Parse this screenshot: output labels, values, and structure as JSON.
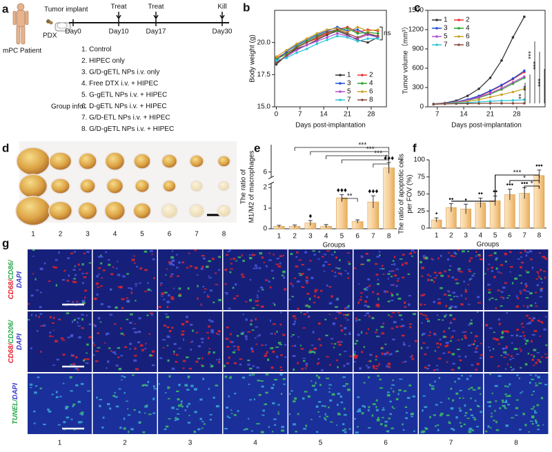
{
  "panel_labels": [
    "a",
    "b",
    "c",
    "d",
    "e",
    "f",
    "g"
  ],
  "timeline": {
    "patient": "mPC Patient",
    "model": "PDX",
    "implant": "Tumor implant",
    "days": [
      "Day0",
      "Day10",
      "Day17",
      "Day30"
    ],
    "events": [
      "Treat",
      "Treat",
      "Kill"
    ],
    "group_info_label": "Group info：",
    "groups": [
      "1. Control",
      "2. HIPEC only",
      "3. G/D-gETL NPs i.v. only",
      "4. Free DTX i.v. + HIPEC",
      "5. G-gETL NPs i.v. + HIPEC",
      "6. D-gETL NPs i.v. + HIPEC",
      "7. G/D-ETL NPs i.v. + HIPEC",
      "8. G/D-gETL NPs i.v. + HIPEC"
    ]
  },
  "chart_data": [
    {
      "type": "line",
      "ylabel": "Body weight (g)",
      "xlabel": "Days post-implantation",
      "x": [
        0,
        3,
        6,
        9,
        12,
        15,
        18,
        21,
        24,
        27,
        30
      ],
      "xlim": [
        -0.5,
        32.5
      ],
      "xticks": [
        0,
        7,
        14,
        21,
        28
      ],
      "ylim": [
        15,
        22.5
      ],
      "yticks": [
        {
          "value": 15,
          "label": "15.0"
        },
        {
          "value": 17.5,
          "label": "17.5"
        },
        {
          "value": 20,
          "label": "20.0"
        }
      ],
      "legend": "lower right",
      "annotations": [
        "ns"
      ],
      "series": [
        {
          "name": "1",
          "color": "#333333",
          "values": [
            18.3,
            19.0,
            19.5,
            19.8,
            20.2,
            20.6,
            20.9,
            20.6,
            20.2,
            20.0,
            20.4
          ]
        },
        {
          "name": "2",
          "color": "#e8312f",
          "values": [
            18.8,
            19.2,
            19.6,
            20.0,
            20.3,
            20.7,
            21.0,
            21.2,
            20.8,
            21.0,
            20.9
          ]
        },
        {
          "name": "3",
          "color": "#1f4fd8",
          "values": [
            18.6,
            19.3,
            19.8,
            20.2,
            20.6,
            20.9,
            21.2,
            20.9,
            21.0,
            20.6,
            20.5
          ]
        },
        {
          "name": "4",
          "color": "#2ca02c",
          "values": [
            18.7,
            19.1,
            19.7,
            20.1,
            20.5,
            20.8,
            20.9,
            21.1,
            20.7,
            20.8,
            20.7
          ]
        },
        {
          "name": "5",
          "color": "#b04fd0",
          "values": [
            18.5,
            18.9,
            19.4,
            19.8,
            20.1,
            20.4,
            20.7,
            20.5,
            20.3,
            20.6,
            20.4
          ]
        },
        {
          "name": "6",
          "color": "#c9a227",
          "values": [
            18.9,
            19.4,
            19.9,
            20.3,
            20.7,
            21.0,
            21.1,
            20.8,
            21.2,
            20.9,
            21.0
          ]
        },
        {
          "name": "7",
          "color": "#2cc5d8",
          "values": [
            18.6,
            18.8,
            19.2,
            19.5,
            19.9,
            20.2,
            20.5,
            20.4,
            20.1,
            20.3,
            20.3
          ]
        },
        {
          "name": "8",
          "color": "#8b4a3a",
          "values": [
            18.4,
            19.0,
            19.6,
            20.0,
            20.4,
            20.8,
            21.0,
            20.7,
            20.4,
            20.7,
            20.5
          ]
        }
      ]
    },
    {
      "type": "line",
      "ylabel": "Tumor volume（mm³）",
      "xlabel": "Days post-implantation",
      "x": [
        6,
        9,
        12,
        15,
        18,
        21,
        24,
        27,
        30
      ],
      "xlim": [
        4.5,
        35.5
      ],
      "xticks": [
        7,
        14,
        21,
        28
      ],
      "ylim": [
        0,
        1500
      ],
      "yticks": [
        0,
        300,
        600,
        900,
        1200,
        1500
      ],
      "legend": "upper left",
      "annotations": [
        "***",
        "***",
        "***",
        "**",
        "**"
      ],
      "series": [
        {
          "name": "1",
          "color": "#333333",
          "values": [
            45,
            60,
            95,
            170,
            280,
            450,
            720,
            1080,
            1400
          ]
        },
        {
          "name": "2",
          "color": "#e8312f",
          "values": [
            40,
            55,
            75,
            110,
            160,
            240,
            330,
            430,
            540
          ]
        },
        {
          "name": "3",
          "color": "#1f4fd8",
          "values": [
            42,
            55,
            78,
            115,
            170,
            250,
            340,
            440,
            560
          ]
        },
        {
          "name": "4",
          "color": "#2ca02c",
          "values": [
            40,
            52,
            70,
            100,
            140,
            200,
            270,
            360,
            450
          ]
        },
        {
          "name": "5",
          "color": "#b04fd0",
          "values": [
            41,
            53,
            72,
            105,
            150,
            210,
            290,
            380,
            470
          ]
        },
        {
          "name": "6",
          "color": "#c9a227",
          "values": [
            40,
            50,
            65,
            85,
            110,
            150,
            190,
            230,
            280
          ]
        },
        {
          "name": "7",
          "color": "#2cc5d8",
          "values": [
            40,
            48,
            58,
            65,
            75,
            85,
            95,
            100,
            110
          ]
        },
        {
          "name": "8",
          "color": "#8b4a3a",
          "values": [
            40,
            45,
            48,
            50,
            52,
            55,
            55,
            55,
            55
          ]
        }
      ]
    },
    {
      "type": "bar",
      "ylabel": [
        "The ratio of",
        "M1/M2 of macrophages"
      ],
      "xlabel": "Groups",
      "categories": [
        "1",
        "2",
        "3",
        "4",
        "5",
        "6",
        "7",
        "8"
      ],
      "values": [
        0.12,
        0.12,
        0.28,
        0.12,
        1.5,
        0.35,
        1.3,
        6.3
      ],
      "errors": [
        0.05,
        0.06,
        0.12,
        0.08,
        0.15,
        0.08,
        0.3,
        0.4
      ],
      "color": "#f7cf96",
      "ylim": [
        0,
        8
      ],
      "yticks": [
        0,
        1,
        2,
        6
      ],
      "axis_break": [
        2.2,
        5.6
      ],
      "symbols": [
        null,
        null,
        "♦",
        null,
        "♦♦♦",
        null,
        "♦♦♦",
        "♦♦♦"
      ],
      "significance": [
        "***",
        "***",
        "***",
        "*",
        "*",
        "**"
      ]
    },
    {
      "type": "bar",
      "ylabel": [
        "The ratio of apoptotic cells",
        "per FOV (%)"
      ],
      "xlabel": "Groups",
      "categories": [
        "1",
        "2",
        "3",
        "4",
        "5",
        "6",
        "7",
        "8"
      ],
      "values": [
        12,
        30,
        28,
        37,
        40,
        49,
        51,
        77
      ],
      "errors": [
        3,
        6,
        7,
        7,
        7,
        8,
        8,
        8
      ],
      "color": "#f7cf96",
      "ylim": [
        0,
        100
      ],
      "yticks": [
        0,
        25,
        50,
        75,
        100
      ],
      "symbols": [
        "•",
        "••",
        "•",
        "••",
        "••",
        "•••",
        "•••",
        "•••"
      ],
      "significance": [
        "***",
        "*",
        "*"
      ]
    }
  ],
  "tumor_photos": {
    "labels": [
      "1",
      "2",
      "3",
      "4",
      "5",
      "6",
      "7",
      "8"
    ]
  },
  "staining": {
    "rows": [
      [
        [
          {
            "text": "CD68/",
            "color": "#e8242c"
          },
          {
            "text": "CD86/",
            "color": "#2aa84a"
          }
        ],
        [
          {
            "text": "DAPI",
            "color": "#3a3ad0"
          }
        ]
      ],
      [
        [
          {
            "text": "CD68/",
            "color": "#e8242c"
          },
          {
            "text": "CD206/",
            "color": "#2aa84a"
          }
        ],
        [
          {
            "text": "DAPI",
            "color": "#3a3ad0"
          }
        ]
      ],
      [
        [
          {
            "text": "TUNEL/",
            "color": "#2aa84a"
          },
          {
            "text": "DAPI",
            "color": "#3a3ad0"
          }
        ]
      ]
    ],
    "columns": [
      "1",
      "2",
      "3",
      "4",
      "5",
      "6",
      "7",
      "8"
    ]
  }
}
